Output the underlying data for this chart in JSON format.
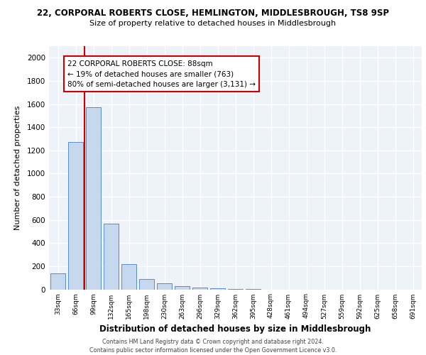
{
  "title_line1": "22, CORPORAL ROBERTS CLOSE, HEMLINGTON, MIDDLESBROUGH, TS8 9SP",
  "title_line2": "Size of property relative to detached houses in Middlesbrough",
  "xlabel": "Distribution of detached houses by size in Middlesbrough",
  "ylabel": "Number of detached properties",
  "categories": [
    "33sqm",
    "66sqm",
    "99sqm",
    "132sqm",
    "165sqm",
    "198sqm",
    "230sqm",
    "263sqm",
    "296sqm",
    "329sqm",
    "362sqm",
    "395sqm",
    "428sqm",
    "461sqm",
    "494sqm",
    "527sqm",
    "559sqm",
    "592sqm",
    "625sqm",
    "658sqm",
    "691sqm"
  ],
  "values": [
    140,
    1270,
    1570,
    570,
    215,
    90,
    50,
    30,
    15,
    8,
    3,
    2,
    0,
    0,
    0,
    0,
    0,
    0,
    0,
    0,
    0
  ],
  "bar_color": "#c5d8ed",
  "bar_edge_color": "#5b8cc8",
  "vline_color": "#cc0000",
  "annotation_line1": "22 CORPORAL ROBERTS CLOSE: 88sqm",
  "annotation_line2": "← 19% of detached houses are smaller (763)",
  "annotation_line3": "80% of semi-detached houses are larger (3,131) →",
  "annotation_box_edge": "#cc0000",
  "ylim": [
    0,
    2100
  ],
  "yticks": [
    0,
    200,
    400,
    600,
    800,
    1000,
    1200,
    1400,
    1600,
    1800,
    2000
  ],
  "footer_line1": "Contains HM Land Registry data © Crown copyright and database right 2024.",
  "footer_line2": "Contains public sector information licensed under the Open Government Licence v3.0.",
  "bg_color": "#eef2f9"
}
